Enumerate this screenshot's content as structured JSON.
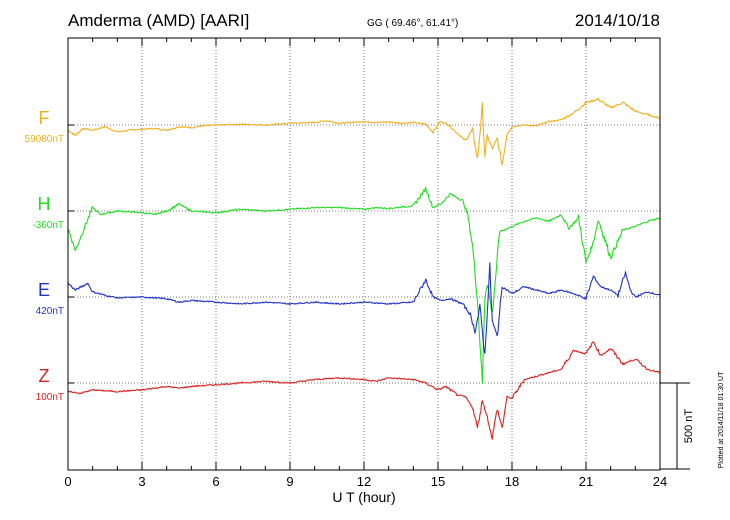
{
  "header": {
    "station": "Amderma (AMD)  [AARI]",
    "coords": "GG ( 69.46°,  61.41°)",
    "date": "2014/10/18"
  },
  "side_note": "Plotted at 2014/11/18 01:30 UT",
  "chart_data": {
    "type": "line",
    "xlabel": "U T (hour)",
    "xlim": [
      0,
      24
    ],
    "x_ticks": [
      "0",
      "3",
      "6",
      "9",
      "12",
      "15",
      "18",
      "21",
      "24"
    ],
    "scale_bar_label": "500 nT",
    "scale_bar_nT": 500,
    "series": [
      {
        "name": "F",
        "baseline_label": "59080nT",
        "baseline_nT": 59080,
        "color": "#f0b020",
        "points": [
          [
            0.0,
            -30
          ],
          [
            0.3,
            -60
          ],
          [
            0.6,
            -20
          ],
          [
            1.0,
            -30
          ],
          [
            1.5,
            -10
          ],
          [
            2.0,
            -40
          ],
          [
            2.5,
            -30
          ],
          [
            3.0,
            -25
          ],
          [
            3.5,
            -20
          ],
          [
            4.0,
            -30
          ],
          [
            4.5,
            -10
          ],
          [
            5.0,
            -15
          ],
          [
            5.5,
            -5
          ],
          [
            6.0,
            0
          ],
          [
            7.0,
            5
          ],
          [
            8.0,
            0
          ],
          [
            9.0,
            10
          ],
          [
            10.0,
            15
          ],
          [
            10.5,
            25
          ],
          [
            11.0,
            10
          ],
          [
            11.5,
            15
          ],
          [
            12.0,
            20
          ],
          [
            12.5,
            15
          ],
          [
            13.0,
            18
          ],
          [
            13.5,
            10
          ],
          [
            14.0,
            15
          ],
          [
            14.5,
            5
          ],
          [
            14.8,
            -40
          ],
          [
            15.1,
            20
          ],
          [
            15.4,
            5
          ],
          [
            15.8,
            -50
          ],
          [
            16.1,
            -90
          ],
          [
            16.4,
            -30
          ],
          [
            16.6,
            -200
          ],
          [
            16.8,
            110
          ],
          [
            16.9,
            -180
          ],
          [
            17.0,
            -60
          ],
          [
            17.2,
            -140
          ],
          [
            17.4,
            -80
          ],
          [
            17.6,
            -230
          ],
          [
            17.8,
            -50
          ],
          [
            18.0,
            -10
          ],
          [
            18.5,
            0
          ],
          [
            19.0,
            -5
          ],
          [
            19.5,
            20
          ],
          [
            20.0,
            30
          ],
          [
            20.5,
            70
          ],
          [
            21.0,
            130
          ],
          [
            21.5,
            150
          ],
          [
            22.0,
            100
          ],
          [
            22.5,
            130
          ],
          [
            23.0,
            80
          ],
          [
            23.5,
            60
          ],
          [
            24.0,
            40
          ]
        ]
      },
      {
        "name": "H",
        "baseline_label": "-360nT",
        "baseline_nT": -360,
        "color": "#22dd22",
        "points": [
          [
            0.0,
            -100
          ],
          [
            0.3,
            -230
          ],
          [
            0.6,
            -120
          ],
          [
            1.0,
            20
          ],
          [
            1.3,
            -20
          ],
          [
            2.0,
            0
          ],
          [
            3.0,
            -10
          ],
          [
            3.5,
            -20
          ],
          [
            4.0,
            0
          ],
          [
            4.5,
            40
          ],
          [
            5.0,
            0
          ],
          [
            6.0,
            -10
          ],
          [
            7.0,
            10
          ],
          [
            8.0,
            0
          ],
          [
            9.0,
            10
          ],
          [
            10.0,
            20
          ],
          [
            11.0,
            20
          ],
          [
            12.0,
            10
          ],
          [
            12.5,
            20
          ],
          [
            13.0,
            15
          ],
          [
            14.0,
            30
          ],
          [
            14.5,
            130
          ],
          [
            14.8,
            20
          ],
          [
            15.1,
            40
          ],
          [
            15.5,
            100
          ],
          [
            16.0,
            60
          ],
          [
            16.2,
            -20
          ],
          [
            16.4,
            -200
          ],
          [
            16.6,
            -520
          ],
          [
            16.8,
            -1000
          ],
          [
            16.9,
            -500
          ],
          [
            17.0,
            -420
          ],
          [
            17.2,
            -600
          ],
          [
            17.5,
            -120
          ],
          [
            18.0,
            -90
          ],
          [
            18.5,
            -60
          ],
          [
            19.0,
            -40
          ],
          [
            19.5,
            -60
          ],
          [
            20.0,
            -20
          ],
          [
            20.3,
            -100
          ],
          [
            20.7,
            -40
          ],
          [
            21.0,
            -300
          ],
          [
            21.3,
            -180
          ],
          [
            21.5,
            -50
          ],
          [
            22.0,
            -270
          ],
          [
            22.5,
            -110
          ],
          [
            23.0,
            -90
          ],
          [
            23.5,
            -60
          ],
          [
            24.0,
            -40
          ]
        ]
      },
      {
        "name": "E",
        "baseline_label": "420nT",
        "baseline_nT": 420,
        "color": "#2233cc",
        "points": [
          [
            0.0,
            80
          ],
          [
            0.3,
            40
          ],
          [
            0.8,
            80
          ],
          [
            1.0,
            30
          ],
          [
            1.5,
            10
          ],
          [
            2.0,
            -5
          ],
          [
            3.0,
            0
          ],
          [
            4.0,
            -10
          ],
          [
            4.5,
            -30
          ],
          [
            5.0,
            -20
          ],
          [
            6.0,
            -30
          ],
          [
            7.0,
            -40
          ],
          [
            8.0,
            -30
          ],
          [
            9.0,
            -40
          ],
          [
            10.0,
            -30
          ],
          [
            11.0,
            -40
          ],
          [
            12.0,
            -30
          ],
          [
            13.0,
            -40
          ],
          [
            14.0,
            -30
          ],
          [
            14.5,
            100
          ],
          [
            14.8,
            0
          ],
          [
            15.1,
            -20
          ],
          [
            15.5,
            -10
          ],
          [
            16.0,
            -40
          ],
          [
            16.3,
            -100
          ],
          [
            16.5,
            -200
          ],
          [
            16.7,
            -60
          ],
          [
            16.9,
            -340
          ],
          [
            17.1,
            180
          ],
          [
            17.2,
            -140
          ],
          [
            17.4,
            -230
          ],
          [
            17.6,
            60
          ],
          [
            18.0,
            20
          ],
          [
            18.5,
            60
          ],
          [
            19.0,
            40
          ],
          [
            19.5,
            20
          ],
          [
            20.0,
            40
          ],
          [
            20.5,
            20
          ],
          [
            21.0,
            -10
          ],
          [
            21.3,
            120
          ],
          [
            21.6,
            60
          ],
          [
            22.0,
            40
          ],
          [
            22.3,
            10
          ],
          [
            22.6,
            140
          ],
          [
            22.8,
            40
          ],
          [
            23.0,
            0
          ],
          [
            23.5,
            30
          ],
          [
            24.0,
            10
          ]
        ]
      },
      {
        "name": "Z",
        "baseline_label": "100nT",
        "baseline_nT": 100,
        "color": "#dd2222",
        "points": [
          [
            0.0,
            -50
          ],
          [
            0.5,
            -60
          ],
          [
            1.0,
            -40
          ],
          [
            2.0,
            -50
          ],
          [
            3.0,
            -40
          ],
          [
            4.0,
            -20
          ],
          [
            4.5,
            -30
          ],
          [
            5.0,
            -20
          ],
          [
            6.0,
            -10
          ],
          [
            7.0,
            0
          ],
          [
            8.0,
            10
          ],
          [
            9.0,
            0
          ],
          [
            10.0,
            20
          ],
          [
            11.0,
            30
          ],
          [
            12.0,
            20
          ],
          [
            12.5,
            10
          ],
          [
            13.0,
            30
          ],
          [
            14.0,
            20
          ],
          [
            14.5,
            0
          ],
          [
            15.0,
            -40
          ],
          [
            15.3,
            -20
          ],
          [
            15.8,
            -70
          ],
          [
            16.1,
            -80
          ],
          [
            16.4,
            -140
          ],
          [
            16.6,
            -260
          ],
          [
            16.8,
            -100
          ],
          [
            17.0,
            -200
          ],
          [
            17.2,
            -320
          ],
          [
            17.4,
            -150
          ],
          [
            17.6,
            -260
          ],
          [
            17.8,
            -80
          ],
          [
            18.0,
            -90
          ],
          [
            18.5,
            20
          ],
          [
            19.0,
            40
          ],
          [
            19.5,
            60
          ],
          [
            20.0,
            80
          ],
          [
            20.5,
            190
          ],
          [
            21.0,
            170
          ],
          [
            21.3,
            240
          ],
          [
            21.6,
            160
          ],
          [
            22.0,
            200
          ],
          [
            22.5,
            110
          ],
          [
            23.0,
            140
          ],
          [
            23.5,
            80
          ],
          [
            24.0,
            60
          ]
        ]
      }
    ]
  }
}
